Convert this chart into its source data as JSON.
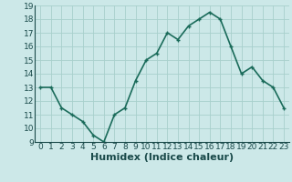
{
  "x": [
    0,
    1,
    2,
    3,
    4,
    5,
    6,
    7,
    8,
    9,
    10,
    11,
    12,
    13,
    14,
    15,
    16,
    17,
    18,
    19,
    20,
    21,
    22,
    23
  ],
  "y": [
    13.0,
    13.0,
    11.5,
    11.0,
    10.5,
    9.5,
    9.0,
    11.0,
    11.5,
    13.5,
    15.0,
    15.5,
    17.0,
    16.5,
    17.5,
    18.0,
    18.5,
    18.0,
    16.0,
    14.0,
    14.5,
    13.5,
    13.0,
    11.5
  ],
  "line_color": "#1a6b5a",
  "marker_color": "#1a6b5a",
  "bg_color": "#cce8e8",
  "grid_color": "#a8d0cc",
  "xlabel": "Humidex (Indice chaleur)",
  "ylim": [
    9,
    19
  ],
  "xlim": [
    -0.5,
    23.5
  ],
  "yticks": [
    9,
    10,
    11,
    12,
    13,
    14,
    15,
    16,
    17,
    18,
    19
  ],
  "xticks": [
    0,
    1,
    2,
    3,
    4,
    5,
    6,
    7,
    8,
    9,
    10,
    11,
    12,
    13,
    14,
    15,
    16,
    17,
    18,
    19,
    20,
    21,
    22,
    23
  ],
  "xtick_labels": [
    "0",
    "1",
    "2",
    "3",
    "4",
    "5",
    "6",
    "7",
    "8",
    "9",
    "10",
    "11",
    "12",
    "13",
    "14",
    "15",
    "16",
    "17",
    "18",
    "19",
    "20",
    "21",
    "22",
    "23"
  ],
  "font_color": "#1a4a4a",
  "xlabel_fontsize": 8,
  "tick_fontsize": 6.5,
  "line_width": 1.2,
  "marker_size": 3
}
